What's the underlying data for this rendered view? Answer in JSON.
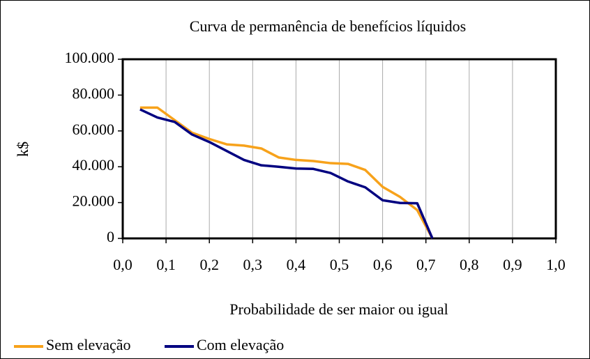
{
  "chart_data": {
    "type": "line",
    "title": "Curva de permanência de benefícios líquidos",
    "y_label": "k$",
    "x_label": "Probabilidade de ser maior ou igual",
    "x": [
      0.04,
      0.08,
      0.12,
      0.16,
      0.2,
      0.24,
      0.28,
      0.32,
      0.36,
      0.4,
      0.44,
      0.48,
      0.52,
      0.56,
      0.6,
      0.64,
      0.68,
      0.715
    ],
    "series": [
      {
        "name": "Sem elevação",
        "color": "#f7a21b",
        "values": [
          73000,
          73000,
          66000,
          59000,
          55500,
          52500,
          51800,
          50200,
          45200,
          43800,
          43200,
          42000,
          41600,
          38200,
          28800,
          23200,
          15800,
          0
        ]
      },
      {
        "name": "Com elevação",
        "color": "#000080",
        "values": [
          72000,
          67500,
          65000,
          58000,
          53800,
          48800,
          43800,
          40800,
          40000,
          39000,
          38800,
          36500,
          31800,
          28500,
          21300,
          19800,
          19600,
          0
        ]
      }
    ],
    "xlim": [
      0,
      1
    ],
    "ylim": [
      0,
      100000
    ],
    "xticks": [
      {
        "value": 0,
        "label": "0,0"
      },
      {
        "value": 0.1,
        "label": "0,1"
      },
      {
        "value": 0.2,
        "label": "0,2"
      },
      {
        "value": 0.3,
        "label": "0,3"
      },
      {
        "value": 0.4,
        "label": "0,4"
      },
      {
        "value": 0.5,
        "label": "0,5"
      },
      {
        "value": 0.6,
        "label": "0,6"
      },
      {
        "value": 0.7,
        "label": "0,7"
      },
      {
        "value": 0.8,
        "label": "0,8"
      },
      {
        "value": 0.9,
        "label": "0,9"
      },
      {
        "value": 1,
        "label": "1,0"
      }
    ],
    "yticks": [
      0,
      {
        "value": 20000,
        "label": "20.000"
      },
      {
        "value": 40000,
        "label": "40.000"
      },
      {
        "value": 60000,
        "label": "60.000"
      },
      {
        "value": 80000,
        "label": "80.000"
      },
      {
        "value": 100000,
        "label": "100.000"
      }
    ],
    "grid": "x",
    "legend": "bottom-left"
  }
}
